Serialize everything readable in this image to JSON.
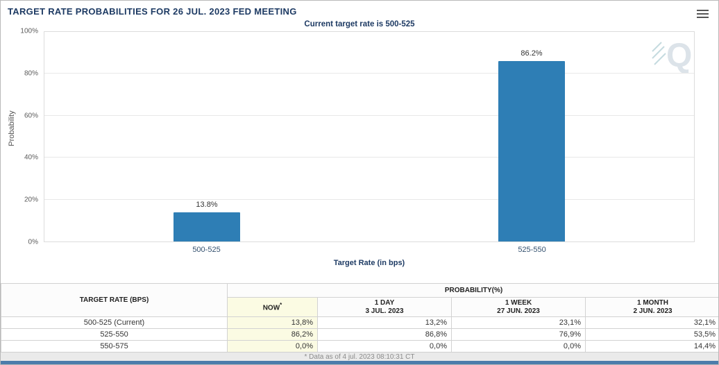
{
  "header": {
    "title": "TARGET RATE PROBABILITIES FOR 26 JUL. 2023 FED MEETING"
  },
  "chart_data": {
    "type": "bar",
    "title": "Current target rate is 500-525",
    "categories": [
      "500-525",
      "525-550"
    ],
    "values": [
      13.8,
      86.2
    ],
    "value_labels": [
      "13.8%",
      "86.2%"
    ],
    "xlabel": "Target Rate (in bps)",
    "ylabel": "Probability",
    "ylim": [
      0,
      100
    ],
    "yticks": [
      0,
      20,
      40,
      60,
      80,
      100
    ],
    "ytick_labels": [
      "0%",
      "20%",
      "40%",
      "60%",
      "80%",
      "100%"
    ],
    "grid": true,
    "legend": "none",
    "bar_color": "#2e7eb5"
  },
  "table": {
    "first_col_header": "TARGET RATE (BPS)",
    "group_header": "PROBABILITY(%)",
    "columns": [
      {
        "label": "NOW",
        "note": "*",
        "date": ""
      },
      {
        "label": "1 DAY",
        "note": "",
        "date": "3 JUL. 2023"
      },
      {
        "label": "1 WEEK",
        "note": "",
        "date": "27 JUN. 2023"
      },
      {
        "label": "1 MONTH",
        "note": "",
        "date": "2 JUN. 2023"
      }
    ],
    "rows": [
      {
        "rate": "500-525 (Current)",
        "values": [
          "13,8%",
          "13,2%",
          "23,1%",
          "32,1%"
        ]
      },
      {
        "rate": "525-550",
        "values": [
          "86,2%",
          "86,8%",
          "76,9%",
          "53,5%"
        ]
      },
      {
        "rate": "550-575",
        "values": [
          "0,0%",
          "0,0%",
          "0,0%",
          "14,4%"
        ]
      }
    ]
  },
  "footer": {
    "note": "* Data as of 4 jul. 2023 08:10:31 CT"
  },
  "colors": {
    "bar": "#2e7eb5",
    "title_text": "#1d3a63",
    "now_column_bg": "#fbfbe3",
    "bottom_bar": "#4b7cab",
    "watermark": "#d9e1e7"
  }
}
